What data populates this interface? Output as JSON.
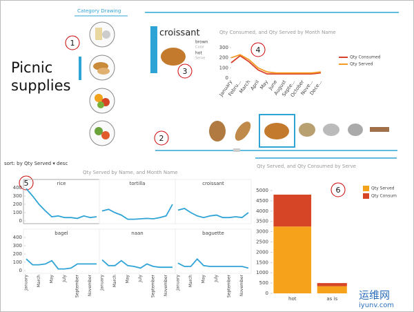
{
  "header": {
    "category_label": "Category Drawing",
    "title_line1": "Picnic",
    "title_line2": "supplies",
    "sort_label": "sort: by Qty Served ▾ desc"
  },
  "card": {
    "name": "croissant",
    "color_value": "brown",
    "color_label": "Color",
    "serve_value": "hot",
    "serve_label": "Serve"
  },
  "markers": [
    "1",
    "2",
    "3",
    "4",
    "5",
    "6"
  ],
  "watermark": {
    "line1": "运维网",
    "line2": "iyunv.com"
  },
  "chart_data": [
    {
      "type": "line",
      "title": "Qty Consumed, and Qty Served by Month Name",
      "categories": [
        "January",
        "Febru...",
        "March",
        "April",
        "May",
        "June",
        "August",
        "Septe...",
        "October",
        "Nove...",
        "Dece..."
      ],
      "series": [
        {
          "name": "Qty Consumed",
          "color": "#d9402b",
          "values": [
            150,
            220,
            160,
            80,
            40,
            40,
            40,
            40,
            40,
            40,
            50
          ]
        },
        {
          "name": "Qty Served",
          "color": "#f59a23",
          "values": [
            200,
            230,
            180,
            100,
            60,
            50,
            50,
            50,
            50,
            50,
            60
          ]
        }
      ],
      "ylim": [
        0,
        300
      ],
      "yticks": [
        0,
        100,
        200,
        300
      ]
    },
    {
      "type": "small-multiples",
      "title": "Qty Served by Name, and Month Name",
      "categories": [
        "January",
        null,
        "March",
        null,
        "May",
        null,
        "July",
        null,
        "September",
        null,
        "November",
        null
      ],
      "series": [
        {
          "name": "rice",
          "color": "#2ea3d6",
          "values": [
            390,
            300,
            200,
            120,
            50,
            60,
            40,
            40,
            30,
            60,
            40,
            50
          ]
        },
        {
          "name": "tortilla",
          "color": "#2ea3d6",
          "values": [
            120,
            140,
            100,
            70,
            20,
            20,
            25,
            30,
            25,
            40,
            60,
            200
          ]
        },
        {
          "name": "croissant",
          "color": "#2ea3d6",
          "values": [
            130,
            150,
            100,
            60,
            40,
            60,
            70,
            40,
            40,
            50,
            40,
            100
          ]
        },
        {
          "name": "bagel",
          "color": "#2ea3d6",
          "values": [
            140,
            70,
            70,
            80,
            120,
            20,
            20,
            30,
            80,
            80,
            80,
            80
          ]
        },
        {
          "name": "naan",
          "color": "#2ea3d6",
          "values": [
            130,
            60,
            60,
            120,
            60,
            50,
            30,
            80,
            50,
            40,
            40,
            40
          ]
        },
        {
          "name": "baguette",
          "color": "#2ea3d6",
          "values": [
            90,
            50,
            50,
            140,
            60,
            50,
            50,
            50,
            50,
            50,
            50,
            30
          ]
        }
      ],
      "ylim": [
        0,
        400
      ],
      "yticks": [
        0,
        100,
        200,
        300,
        400
      ]
    },
    {
      "type": "bar",
      "stacked": true,
      "title": "Qty Served, and Qty Consumed by Serve",
      "categories": [
        "hot",
        "as is"
      ],
      "series": [
        {
          "name": "Qty Served",
          "color": "#f7a21b",
          "values": [
            3250,
            350
          ]
        },
        {
          "name": "Qty Consum",
          "color": "#d64526",
          "values": [
            1550,
            150
          ]
        }
      ],
      "ylim": [
        0,
        5000
      ],
      "yticks": [
        0,
        500,
        1000,
        1500,
        2000,
        2500,
        3000,
        3500,
        4000,
        4500,
        5000
      ]
    }
  ]
}
